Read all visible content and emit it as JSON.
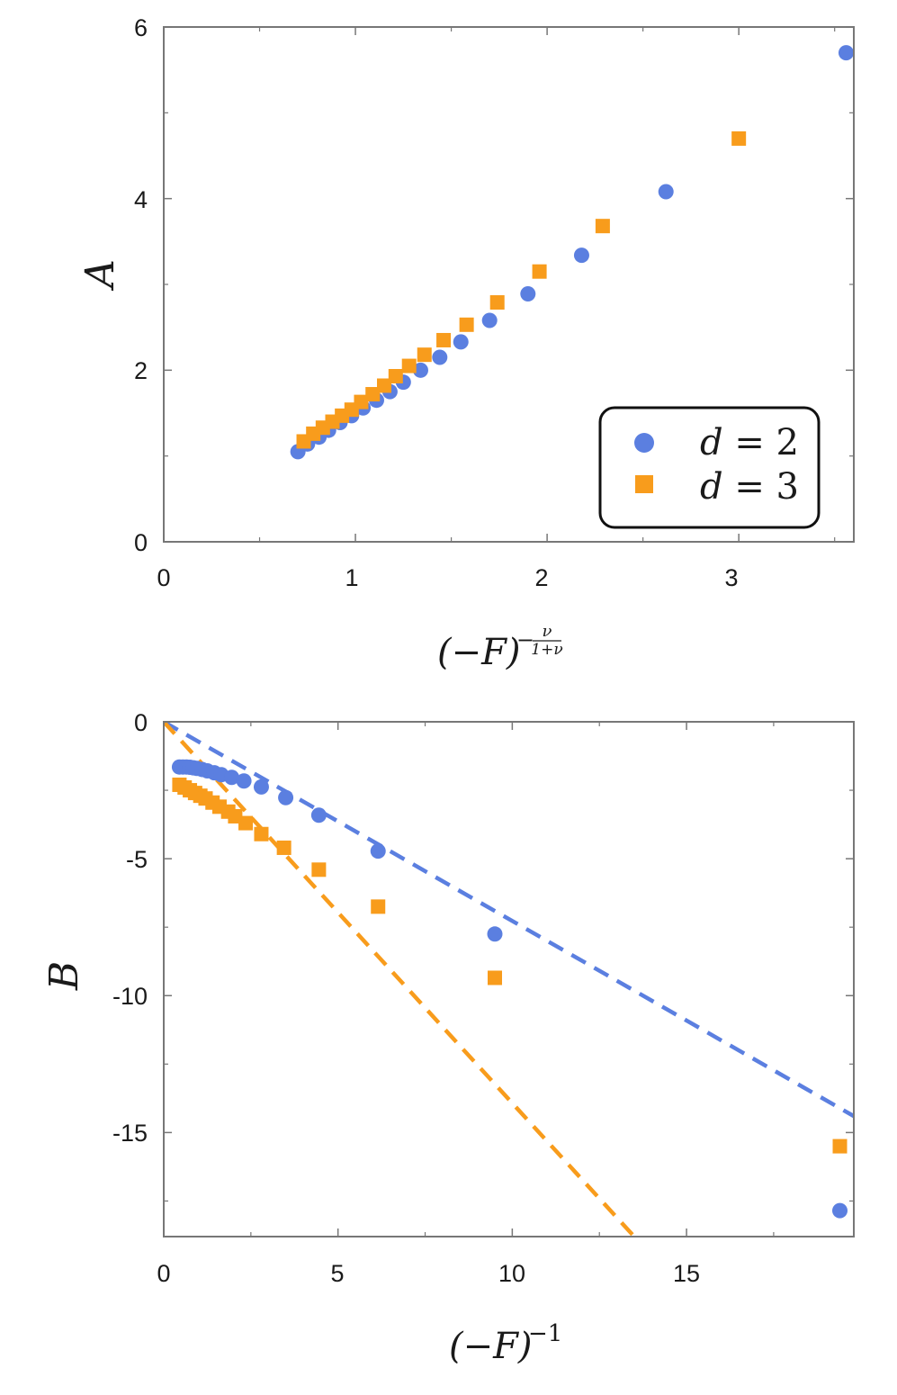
{
  "colors": {
    "d2": "#5b7fe0",
    "d3": "#f89c1c",
    "axis": "#777777"
  },
  "legend": {
    "entries": [
      {
        "var": "d",
        "eq": " = 2",
        "marker": "circle",
        "color": "#5b7fe0"
      },
      {
        "var": "d",
        "eq": " = 3",
        "marker": "square",
        "color": "#f89c1c"
      }
    ]
  },
  "chart_data": [
    {
      "type": "scatter",
      "ylabel": "A",
      "xlabel_base": "(−F)",
      "xlabel_exp_num": "ν",
      "xlabel_exp_den": "1+ν",
      "xlim": [
        0,
        3.6
      ],
      "ylim": [
        0,
        6
      ],
      "xticks": [
        "0",
        "1",
        "2",
        "3"
      ],
      "yticks": [
        "0",
        "2",
        "4",
        "6"
      ],
      "grid": false,
      "legend_position": "bottom-right",
      "series": [
        {
          "name": "d = 2",
          "marker": "circle",
          "x": [
            0.7,
            0.75,
            0.81,
            0.86,
            0.92,
            0.98,
            1.04,
            1.11,
            1.18,
            1.25,
            1.34,
            1.44,
            1.55,
            1.7,
            1.9,
            2.18,
            2.62,
            3.56
          ],
          "y": [
            1.05,
            1.14,
            1.22,
            1.3,
            1.39,
            1.47,
            1.56,
            1.65,
            1.75,
            1.86,
            2.0,
            2.15,
            2.33,
            2.58,
            2.89,
            3.34,
            4.08,
            5.7
          ]
        },
        {
          "name": "d = 3",
          "marker": "square",
          "x": [
            0.73,
            0.78,
            0.83,
            0.88,
            0.93,
            0.98,
            1.03,
            1.09,
            1.15,
            1.21,
            1.28,
            1.36,
            1.46,
            1.58,
            1.74,
            1.96,
            2.29,
            3.0
          ],
          "y": [
            1.17,
            1.26,
            1.33,
            1.4,
            1.47,
            1.54,
            1.63,
            1.72,
            1.82,
            1.93,
            2.05,
            2.18,
            2.35,
            2.53,
            2.79,
            3.15,
            3.68,
            4.7
          ]
        }
      ]
    },
    {
      "type": "scatter",
      "ylabel": "B",
      "xlabel_base": "(−F)",
      "xlabel_exp": "−1",
      "xlim": [
        0,
        19.8
      ],
      "ylim": [
        -18.8,
        0
      ],
      "xticks": [
        "0",
        "5",
        "10",
        "15"
      ],
      "yticks": [
        "0",
        "-5",
        "-10",
        "-15"
      ],
      "grid": false,
      "series": [
        {
          "name": "d = 2",
          "marker": "circle",
          "x": [
            0.45,
            0.55,
            0.65,
            0.75,
            0.85,
            0.95,
            1.1,
            1.25,
            1.45,
            1.65,
            1.95,
            2.3,
            2.8,
            3.5,
            4.45,
            6.15,
            9.5,
            19.4
          ],
          "y": [
            -1.65,
            -1.65,
            -1.65,
            -1.66,
            -1.68,
            -1.7,
            -1.74,
            -1.79,
            -1.86,
            -1.93,
            -2.03,
            -2.16,
            -2.38,
            -2.77,
            -3.41,
            -4.72,
            -7.75,
            -17.85
          ]
        },
        {
          "name": "d = 3",
          "marker": "square",
          "x": [
            0.45,
            0.6,
            0.75,
            0.9,
            1.05,
            1.2,
            1.4,
            1.6,
            1.85,
            2.05,
            2.35,
            2.8,
            3.45,
            4.45,
            6.15,
            9.5,
            19.4
          ],
          "y": [
            -2.3,
            -2.4,
            -2.5,
            -2.6,
            -2.7,
            -2.8,
            -2.95,
            -3.1,
            -3.28,
            -3.45,
            -3.7,
            -4.1,
            -4.6,
            -5.4,
            -6.75,
            -9.35,
            -15.5
          ]
        },
        {
          "name": "d = 2 asymptote",
          "style": "dashed",
          "x": [
            0,
            19.8
          ],
          "y": [
            0,
            -14.4
          ]
        },
        {
          "name": "d = 3 asymptote",
          "style": "dashed",
          "x": [
            0,
            13.5
          ],
          "y": [
            0,
            -18.8
          ]
        }
      ]
    }
  ]
}
